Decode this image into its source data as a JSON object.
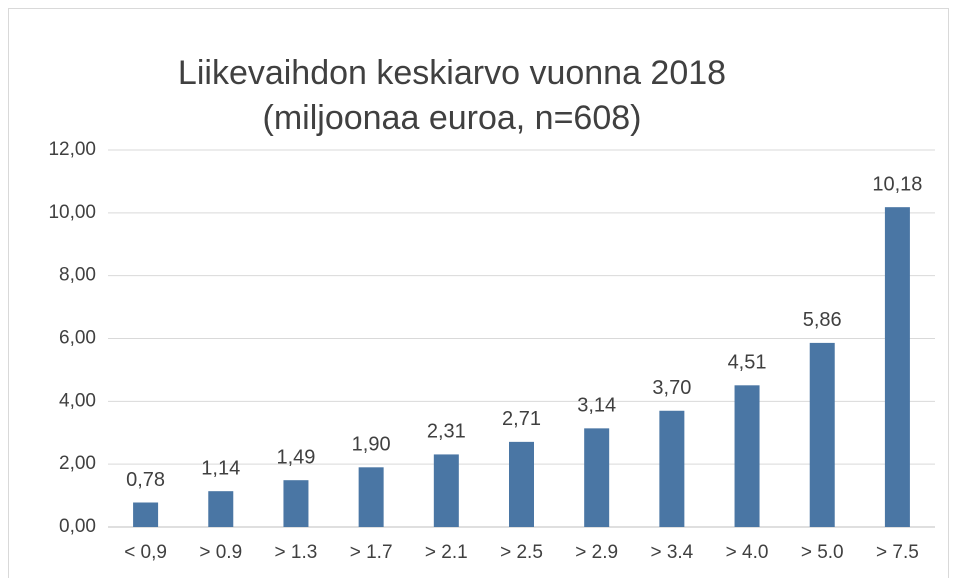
{
  "chart_data": {
    "type": "bar",
    "title": [
      "Liikevaihdon keskiarvo vuonna 2018",
      "(miljoonaa euroa, n=608)"
    ],
    "categories": [
      "< 0,9",
      "> 0.9",
      "> 1.3",
      "> 1.7",
      "> 2.1",
      "> 2.5",
      "> 2.9",
      "> 3.4",
      "> 4.0",
      "> 5.0",
      "> 7.5"
    ],
    "values": [
      0.78,
      1.14,
      1.49,
      1.9,
      2.31,
      2.71,
      3.14,
      3.7,
      4.51,
      5.86,
      10.18
    ],
    "value_labels": [
      "0,78",
      "1,14",
      "1,49",
      "1,90",
      "2,31",
      "2,71",
      "3,14",
      "3,70",
      "4,51",
      "5,86",
      "10,18"
    ],
    "color": "#4a76a4",
    "ylim": [
      0,
      12
    ],
    "yticks": [
      {
        "value": 0,
        "label": "0,00"
      },
      {
        "value": 2,
        "label": "2,00"
      },
      {
        "value": 4,
        "label": "4,00"
      },
      {
        "value": 6,
        "label": "6,00"
      },
      {
        "value": 8,
        "label": "8,00"
      },
      {
        "value": 10,
        "label": "10,00"
      },
      {
        "value": 12,
        "label": "12,00"
      }
    ],
    "grid": true
  }
}
